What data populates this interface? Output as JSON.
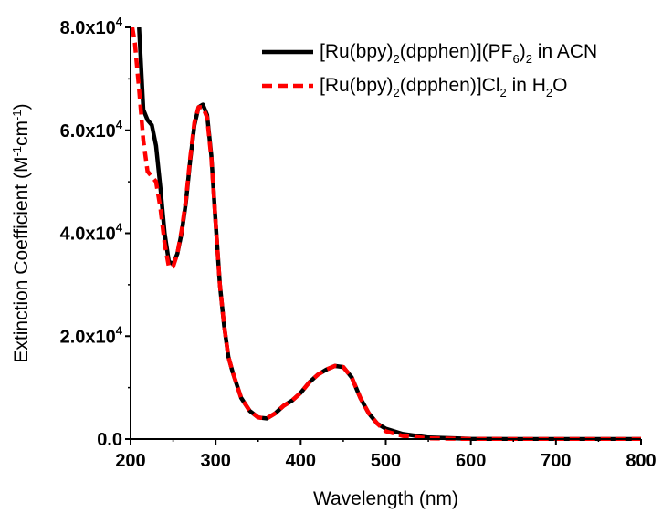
{
  "chart_data": {
    "type": "line",
    "xlabel": "Wavelength (nm)",
    "ylabel": {
      "prefix": "Extinction Coefficient (M",
      "sup1": "-1",
      "mid": "cm",
      "sup2": "-1",
      "suffix": ")"
    },
    "xlim": [
      200,
      800
    ],
    "ylim": [
      0,
      80000
    ],
    "x_ticks": [
      200,
      300,
      400,
      500,
      600,
      700,
      800
    ],
    "x_tick_labels": [
      "200",
      "300",
      "400",
      "500",
      "600",
      "700",
      "800"
    ],
    "y_ticks": [
      0,
      20000,
      40000,
      60000,
      80000
    ],
    "y_tick_labels": [
      {
        "text": "0.0",
        "sup": ""
      },
      {
        "text": "2.0x10",
        "sup": "4"
      },
      {
        "text": "4.0x10",
        "sup": "4"
      },
      {
        "text": "6.0x10",
        "sup": "4"
      },
      {
        "text": "8.0x10",
        "sup": "4"
      }
    ],
    "grid": false,
    "legend_position": "top-right",
    "series": [
      {
        "name": "[Ru(bpy)2(dpphen)](PF6)2 in ACN",
        "legend_parts": [
          {
            "t": "[Ru(bpy)"
          },
          {
            "t": "2",
            "sub": true
          },
          {
            "t": "(dpphen)](PF"
          },
          {
            "t": "6",
            "sub": true
          },
          {
            "t": ")"
          },
          {
            "t": "2",
            "sub": true
          },
          {
            "t": " in ACN"
          }
        ],
        "color": "#000000",
        "dash": "solid",
        "x": [
          210,
          215,
          220,
          225,
          230,
          235,
          240,
          245,
          250,
          255,
          260,
          265,
          270,
          275,
          280,
          285,
          290,
          295,
          300,
          305,
          310,
          315,
          320,
          330,
          340,
          350,
          360,
          370,
          380,
          390,
          400,
          410,
          420,
          430,
          440,
          450,
          460,
          470,
          480,
          490,
          500,
          520,
          550,
          600,
          650,
          700,
          800
        ],
        "y": [
          80000,
          64000,
          62000,
          61000,
          57000,
          49000,
          40000,
          34500,
          34000,
          36000,
          40000,
          46000,
          54000,
          61000,
          64500,
          65000,
          63000,
          55000,
          42000,
          30000,
          22000,
          16000,
          13000,
          8000,
          5500,
          4200,
          4000,
          5000,
          6500,
          7500,
          9000,
          11000,
          12500,
          13500,
          14200,
          14000,
          12000,
          8000,
          5000,
          3000,
          2000,
          1000,
          300,
          50,
          0,
          0,
          0
        ]
      },
      {
        "name": "[Ru(bpy)2(dpphen)]Cl2 in H2O",
        "legend_parts": [
          {
            "t": "[Ru(bpy)"
          },
          {
            "t": "2",
            "sub": true
          },
          {
            "t": "(dpphen)]Cl"
          },
          {
            "t": "2",
            "sub": true
          },
          {
            "t": " in H"
          },
          {
            "t": "2",
            "sub": true
          },
          {
            "t": "O"
          }
        ],
        "color": "#ff0000",
        "dash": "dashed",
        "x": [
          202,
          205,
          210,
          215,
          220,
          225,
          230,
          235,
          240,
          245,
          250,
          255,
          260,
          265,
          270,
          275,
          280,
          285,
          290,
          295,
          300,
          305,
          310,
          315,
          320,
          330,
          340,
          350,
          360,
          370,
          380,
          390,
          400,
          410,
          420,
          430,
          440,
          450,
          460,
          470,
          480,
          490,
          500,
          520,
          550,
          600,
          700,
          800
        ],
        "y": [
          80000,
          77000,
          68000,
          58000,
          52000,
          51000,
          50000,
          45000,
          38000,
          33500,
          33500,
          36000,
          40500,
          46500,
          54500,
          61500,
          64500,
          64500,
          62500,
          54500,
          42000,
          30000,
          22000,
          16000,
          13000,
          8000,
          5500,
          4200,
          4000,
          5000,
          6500,
          7500,
          9000,
          11000,
          12500,
          13500,
          14200,
          14000,
          12000,
          8000,
          5000,
          3000,
          1500,
          600,
          150,
          20,
          0,
          0
        ]
      }
    ]
  }
}
